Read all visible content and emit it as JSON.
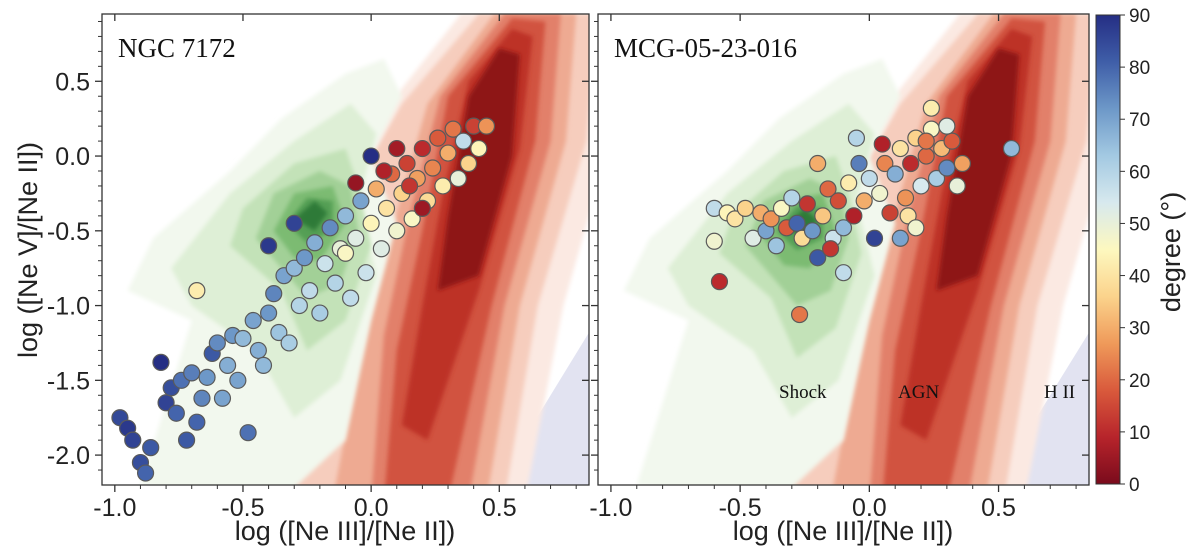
{
  "chart_data": [
    {
      "type": "scatter",
      "panel_label": "NGC 7172",
      "xlabel": "log ([Ne III]/[Ne II])",
      "ylabel": "log ([Ne V]/[Ne II])",
      "xlim": [
        -1.05,
        0.85
      ],
      "ylim": [
        -2.2,
        0.95
      ],
      "xticks": [
        -1.0,
        -0.5,
        0.0,
        0.5
      ],
      "xtick_labels": [
        "-1.0",
        "-0.5",
        "0.0",
        "0.5"
      ],
      "yticks": [
        0.5,
        0.0,
        -0.5,
        -1.0,
        -1.5,
        -2.0
      ],
      "ytick_labels": [
        "0.5",
        "0.0",
        "-0.5",
        "-1.0",
        "-1.5",
        "-2.0"
      ],
      "color_variable": "degree",
      "points_summary": "spaxels colored by degree (0-90); high-degree (blue) points at low x,y extending to (-1.0,-2.0); low-degree (red/orange) points near (0.0 to 0.45, 0.0 to 0.2)",
      "points": [
        [
          -0.98,
          -1.75,
          85
        ],
        [
          -0.95,
          -1.82,
          88
        ],
        [
          -0.93,
          -1.9,
          86
        ],
        [
          -0.9,
          -2.05,
          84
        ],
        [
          -0.88,
          -2.12,
          80
        ],
        [
          -0.86,
          -1.95,
          82
        ],
        [
          -0.82,
          -1.38,
          90
        ],
        [
          -0.8,
          -1.65,
          86
        ],
        [
          -0.78,
          -1.55,
          84
        ],
        [
          -0.76,
          -1.72,
          80
        ],
        [
          -0.74,
          -1.5,
          78
        ],
        [
          -0.72,
          -1.9,
          82
        ],
        [
          -0.7,
          -1.45,
          76
        ],
        [
          -0.68,
          -1.78,
          80
        ],
        [
          -0.66,
          -1.62,
          75
        ],
        [
          -0.64,
          -1.48,
          72
        ],
        [
          -0.62,
          -1.32,
          82
        ],
        [
          -0.6,
          -1.25,
          74
        ],
        [
          -0.58,
          -1.62,
          70
        ],
        [
          -0.56,
          -1.4,
          68
        ],
        [
          -0.54,
          -1.2,
          72
        ],
        [
          -0.52,
          -1.5,
          70
        ],
        [
          -0.5,
          -1.22,
          66
        ],
        [
          -0.48,
          -1.85,
          78
        ],
        [
          -0.46,
          -1.1,
          70
        ],
        [
          -0.44,
          -1.3,
          68
        ],
        [
          -0.42,
          -1.4,
          66
        ],
        [
          -0.4,
          -1.05,
          72
        ],
        [
          -0.38,
          -0.92,
          75
        ],
        [
          -0.36,
          -1.18,
          64
        ],
        [
          -0.34,
          -0.8,
          70
        ],
        [
          -0.32,
          -1.25,
          62
        ],
        [
          -0.3,
          -0.75,
          66
        ],
        [
          -0.28,
          -1.0,
          60
        ],
        [
          -0.26,
          -0.68,
          72
        ],
        [
          -0.24,
          -0.9,
          58
        ],
        [
          -0.22,
          -0.58,
          68
        ],
        [
          -0.2,
          -1.05,
          62
        ],
        [
          -0.18,
          -0.72,
          56
        ],
        [
          -0.16,
          -0.48,
          74
        ],
        [
          -0.14,
          -0.85,
          60
        ],
        [
          -0.12,
          -0.62,
          50
        ],
        [
          -0.1,
          -0.4,
          66
        ],
        [
          -0.08,
          -0.95,
          58
        ],
        [
          -0.06,
          -0.55,
          52
        ],
        [
          -0.04,
          -0.3,
          70
        ],
        [
          -0.02,
          -0.78,
          56
        ],
        [
          0.0,
          -0.45,
          44
        ],
        [
          0.02,
          -0.22,
          30
        ],
        [
          0.04,
          -0.62,
          52
        ],
        [
          0.06,
          -0.35,
          40
        ],
        [
          0.08,
          -0.12,
          20
        ],
        [
          0.1,
          -0.5,
          48
        ],
        [
          0.12,
          -0.25,
          36
        ],
        [
          0.14,
          -0.05,
          14
        ],
        [
          0.16,
          -0.42,
          46
        ],
        [
          0.18,
          -0.15,
          28
        ],
        [
          0.2,
          0.05,
          10
        ],
        [
          0.22,
          -0.3,
          38
        ],
        [
          0.24,
          -0.08,
          24
        ],
        [
          0.26,
          0.12,
          18
        ],
        [
          0.28,
          -0.2,
          42
        ],
        [
          0.3,
          0.02,
          30
        ],
        [
          0.32,
          0.18,
          22
        ],
        [
          0.34,
          -0.15,
          50
        ],
        [
          0.36,
          0.1,
          58
        ],
        [
          0.38,
          -0.05,
          36
        ],
        [
          0.4,
          0.2,
          14
        ],
        [
          0.42,
          0.05,
          44
        ],
        [
          0.45,
          0.2,
          26
        ],
        [
          -0.68,
          -0.9,
          42
        ],
        [
          -0.4,
          -0.6,
          88
        ],
        [
          -0.3,
          -0.45,
          86
        ],
        [
          0.05,
          -0.1,
          8
        ],
        [
          0.1,
          0.05,
          6
        ],
        [
          0.15,
          -0.2,
          12
        ],
        [
          -0.06,
          -0.18,
          4
        ],
        [
          0.0,
          0.0,
          90
        ],
        [
          0.2,
          -0.35,
          5
        ],
        [
          -0.1,
          -0.65,
          46
        ]
      ]
    },
    {
      "type": "scatter",
      "panel_label": "MCG-05-23-016",
      "xlabel": "log ([Ne III]/[Ne II])",
      "xlim": [
        -1.05,
        0.85
      ],
      "ylim": [
        -2.2,
        0.95
      ],
      "xticks": [
        -1.0,
        -0.5,
        0.0,
        0.5
      ],
      "xtick_labels": [
        "-1.0",
        "-0.5",
        "0.0",
        "0.5"
      ],
      "region_labels": [
        "Shock",
        "AGN",
        "H II"
      ],
      "color_variable": "degree",
      "points": [
        [
          -0.6,
          -0.35,
          58
        ],
        [
          -0.6,
          -0.57,
          48
        ],
        [
          -0.58,
          -0.84,
          10
        ],
        [
          -0.55,
          -0.38,
          44
        ],
        [
          -0.52,
          -0.42,
          40
        ],
        [
          -0.48,
          -0.35,
          36
        ],
        [
          -0.45,
          -0.55,
          52
        ],
        [
          -0.42,
          -0.38,
          30
        ],
        [
          -0.4,
          -0.5,
          70
        ],
        [
          -0.38,
          -0.42,
          26
        ],
        [
          -0.36,
          -0.6,
          64
        ],
        [
          -0.34,
          -0.35,
          46
        ],
        [
          -0.32,
          -0.48,
          18
        ],
        [
          -0.3,
          -0.28,
          60
        ],
        [
          -0.28,
          -0.45,
          80
        ],
        [
          -0.27,
          -1.06,
          22
        ],
        [
          -0.26,
          -0.55,
          38
        ],
        [
          -0.24,
          -0.32,
          12
        ],
        [
          -0.22,
          -0.5,
          72
        ],
        [
          -0.2,
          -0.68,
          82
        ],
        [
          -0.18,
          -0.4,
          34
        ],
        [
          -0.16,
          -0.22,
          20
        ],
        [
          -0.14,
          -0.55,
          56
        ],
        [
          -0.12,
          -0.3,
          16
        ],
        [
          -0.1,
          -0.48,
          66
        ],
        [
          -0.08,
          -0.18,
          42
        ],
        [
          -0.06,
          -0.4,
          8
        ],
        [
          -0.04,
          -0.05,
          76
        ],
        [
          -0.02,
          -0.3,
          30
        ],
        [
          0.0,
          -0.15,
          58
        ],
        [
          0.02,
          -0.55,
          86
        ],
        [
          0.04,
          -0.25,
          48
        ],
        [
          0.06,
          -0.05,
          24
        ],
        [
          0.08,
          -0.38,
          14
        ],
        [
          0.1,
          -0.12,
          68
        ],
        [
          0.12,
          0.05,
          40
        ],
        [
          0.14,
          -0.28,
          26
        ],
        [
          0.16,
          -0.05,
          10
        ],
        [
          0.18,
          0.12,
          36
        ],
        [
          0.2,
          -0.2,
          54
        ],
        [
          0.22,
          0.0,
          20
        ],
        [
          0.24,
          0.18,
          46
        ],
        [
          0.26,
          -0.15,
          62
        ],
        [
          0.28,
          0.05,
          32
        ],
        [
          0.3,
          -0.08,
          74
        ],
        [
          0.32,
          0.1,
          18
        ],
        [
          0.34,
          -0.2,
          50
        ],
        [
          0.36,
          -0.05,
          28
        ],
        [
          0.24,
          0.32,
          42
        ],
        [
          0.55,
          0.05,
          66
        ],
        [
          -0.05,
          0.12,
          60
        ],
        [
          -0.1,
          -0.78,
          58
        ],
        [
          0.15,
          -0.4,
          40
        ],
        [
          0.3,
          0.2,
          52
        ],
        [
          0.18,
          -0.48,
          48
        ],
        [
          -0.2,
          -0.05,
          30
        ],
        [
          0.05,
          0.08,
          8
        ],
        [
          0.12,
          -0.55,
          70
        ],
        [
          -0.15,
          -0.62,
          12
        ],
        [
          0.22,
          0.1,
          22
        ]
      ]
    }
  ],
  "colorbar": {
    "label": "degree (°)",
    "range": [
      0,
      90
    ],
    "ticks": [
      "0",
      "10",
      "20",
      "30",
      "40",
      "50",
      "60",
      "70",
      "80",
      "90"
    ],
    "colormap": "RdYlBu",
    "colormap_stops": [
      "#7a0b1c",
      "#b7242b",
      "#d95a3c",
      "#ef9a5a",
      "#fbd38c",
      "#fdf8bf",
      "#d7e9ee",
      "#a3c9e2",
      "#6d98c8",
      "#3f5ea8",
      "#252e84"
    ]
  },
  "background_colors": {
    "green": [
      "#f2f8ee",
      "#deefd6",
      "#c3e2b8",
      "#a2d097",
      "#7cbb72",
      "#549f55",
      "#2f7a38"
    ],
    "red": [
      "#fbe9e2",
      "#f6cdbd",
      "#eeaa92",
      "#e2806a",
      "#d1533f",
      "#bd3226",
      "#8e1418"
    ],
    "hii": "#e2e3f1"
  }
}
